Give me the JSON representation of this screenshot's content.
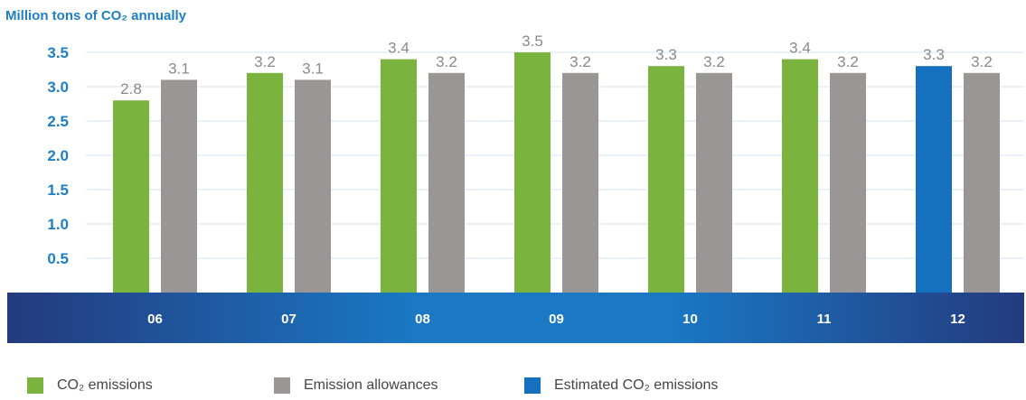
{
  "chart_data": {
    "type": "bar",
    "title": "Million tons of CO₂ annually",
    "categories": [
      "06",
      "07",
      "08",
      "09",
      "10",
      "11",
      "12"
    ],
    "series": [
      {
        "name": "CO₂ emissions",
        "color": "#7ab33e",
        "values": [
          2.8,
          3.2,
          3.4,
          3.5,
          3.3,
          3.4,
          null
        ],
        "labels": [
          "2.8",
          "3.2",
          "3.4",
          "3.5",
          "3.3",
          "3.4",
          ""
        ]
      },
      {
        "name": "Estimated CO₂ emissions",
        "color": "#1570c0",
        "values": [
          null,
          null,
          null,
          null,
          null,
          null,
          3.3
        ],
        "labels": [
          "",
          "",
          "",
          "",
          "",
          "",
          "3.3"
        ]
      },
      {
        "name": "Emission allowances",
        "color": "#9a9696",
        "values": [
          3.1,
          3.1,
          3.2,
          3.2,
          3.2,
          3.2,
          3.2
        ],
        "labels": [
          "3.1",
          "3.1",
          "3.2",
          "3.2",
          "3.2",
          "3.2",
          "3.2"
        ]
      }
    ],
    "yticks": [
      "0.5",
      "1.0",
      "1.5",
      "2.0",
      "2.5",
      "3.0",
      "3.5"
    ],
    "ylim": [
      0,
      3.5
    ],
    "grid": true,
    "legend_position": "bottom"
  },
  "legend": [
    {
      "label": "CO₂ emissions",
      "color": "#7ab33e"
    },
    {
      "label": "Emission allowances",
      "color": "#9a9696"
    },
    {
      "label": "Estimated CO₂ emissions",
      "color": "#1570c0"
    }
  ]
}
